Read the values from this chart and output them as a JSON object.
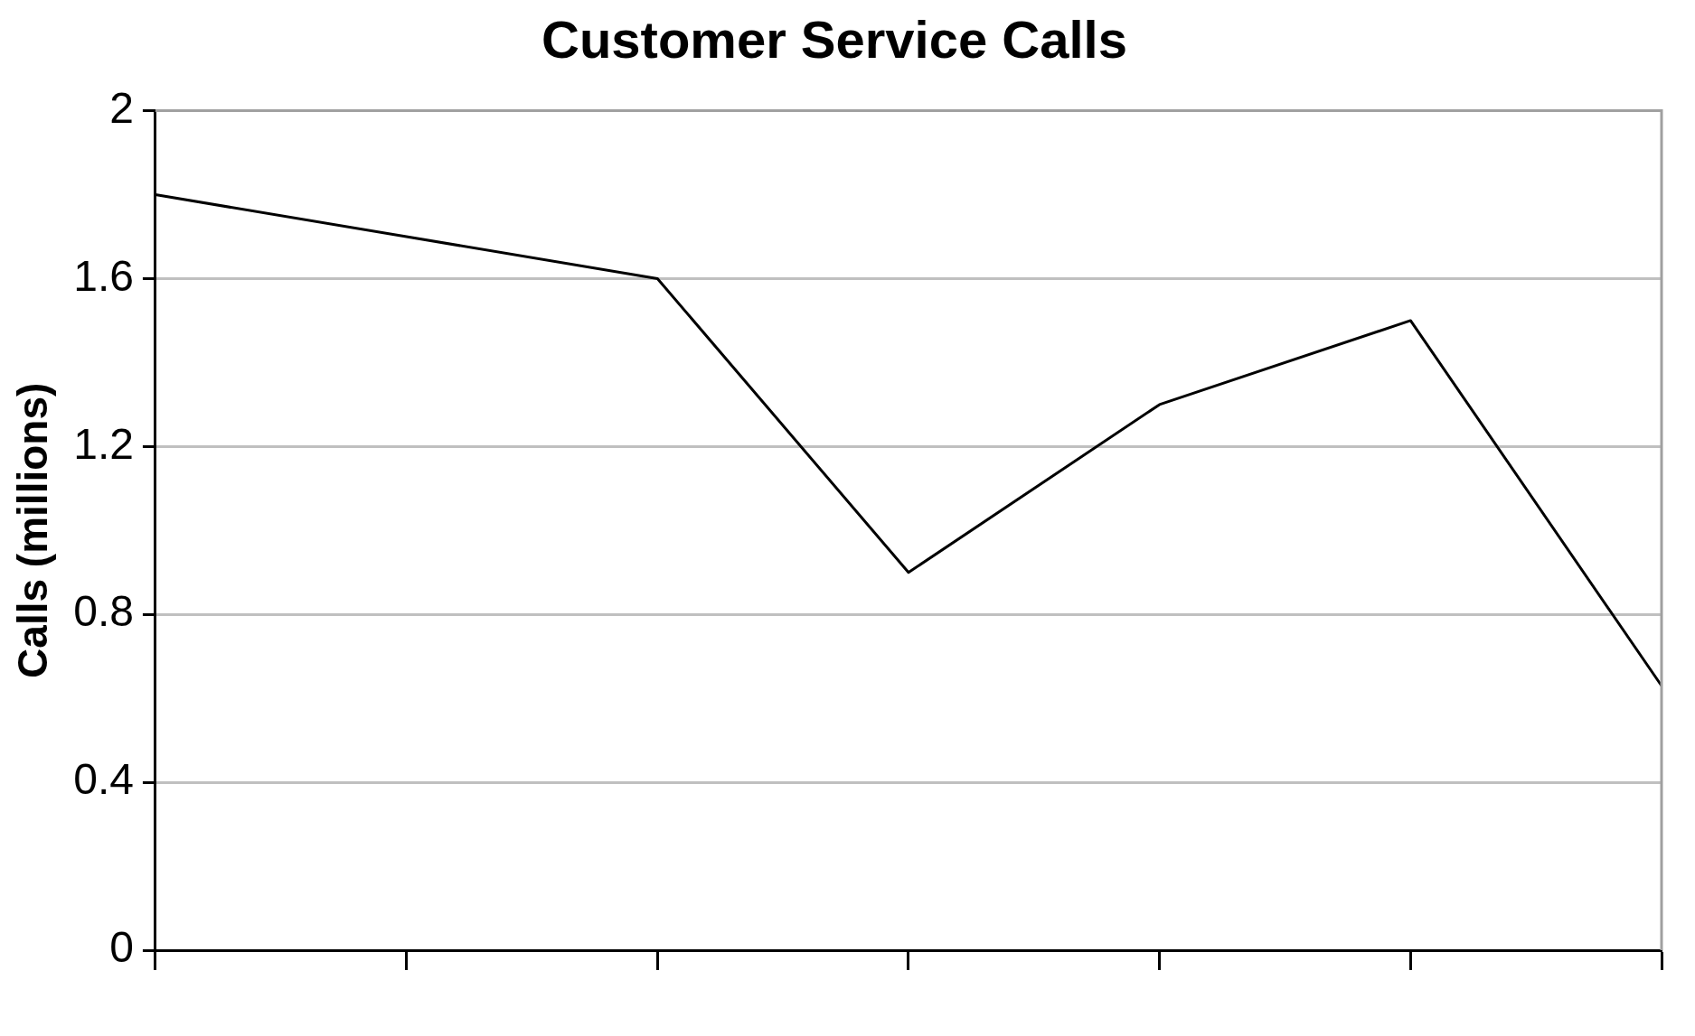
{
  "chart_data": {
    "type": "line",
    "title": "Customer Service Calls",
    "ylabel": "Calls (millions)",
    "categories": [
      null,
      null,
      null,
      null,
      null,
      null,
      null
    ],
    "series": [
      {
        "color": "#000000",
        "values": [
          1.8,
          1.7,
          1.6,
          0.9,
          1.3,
          1.5,
          0.63
        ]
      }
    ],
    "ylim": [
      0,
      2
    ],
    "yticks": [
      0,
      0.4,
      0.8,
      1.2,
      1.6,
      2
    ],
    "grid": "y",
    "legend": false,
    "marker": "none",
    "line_style": "solid"
  }
}
